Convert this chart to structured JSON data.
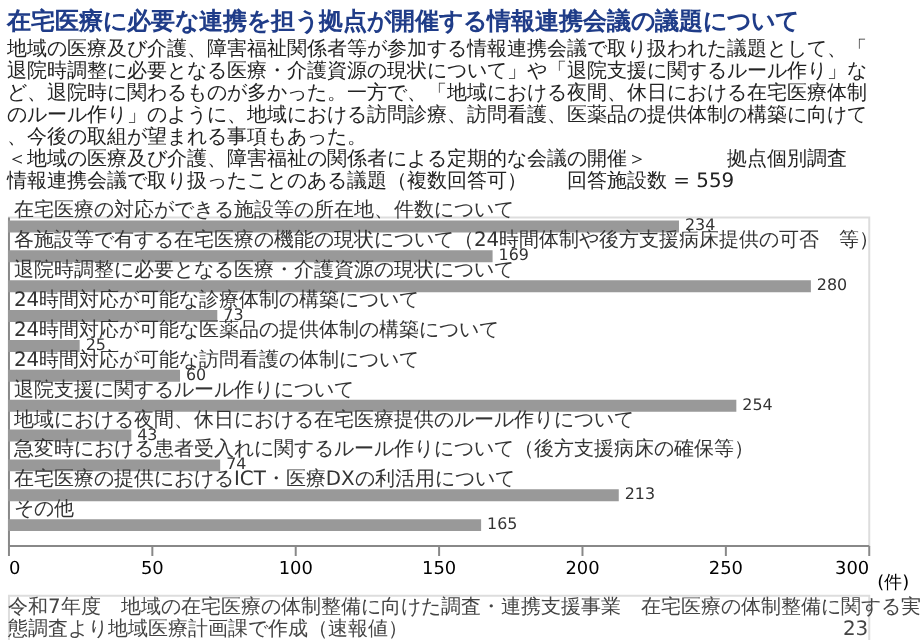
{
  "chart_data": {
    "type": "bar",
    "orientation": "horizontal",
    "title": "在宅医療に必要な連携を担う拠点が開催する情報連携会議の議題について",
    "subtitle": "＜地域の医療及び介護、障害福祉の関係者による定期的な会議の開催＞",
    "annotations": [
      "地域の医療及び介護、障害福祉関係者等が参加する情報連携会議で取り扱われた議題として、「退院時調整に必要となる医療・介護資源の現状について」や「退院支援に関するルール作り」など、退院時に関わるものが多かった。一方で、「地域における夜間、休日における在宅医療体制のルール作り」のように、地域における訪問診療、訪問看護、医薬品の提供体制の構築に向けて、今後の取組が望まれる事項もあった。",
      "情報連携会議で取り扱ったことのある議題（複数回答可）",
      "回答施設数 = 559",
      "令和7年度　地域の在宅医療の体制整備に向けた調査・連携支援事業　在宅医療の体制整備に関する実態調査より地域医療計画課で作成（速報値）",
      "拠点個別調査",
      "23"
    ],
    "categories": [
      "在宅医療の対応ができる施設等の所在地、件数について",
      "各施設等で有する在宅医療の機能の現状について（24時間体制や後方支援病床提供の可否　等）",
      "退院時調整に必要となる医療・介護資源の現状について",
      "24時間対応が可能な診療体制の構築について",
      "24時間対応が可能な医薬品の提供体制の構築について",
      "24時間対応が可能な訪問看護の体制について",
      "退院支援に関するルール作りについて",
      "地域における夜間、休日における在宅医療提供のルール作りについて",
      "急変時における患者受入れに関するルール作りについて（後方支援病床の確保等）",
      "在宅医療の提供におけるICT・医療DXの利活用について",
      "その他"
    ],
    "values": [
      234,
      169,
      280,
      73,
      25,
      60,
      254,
      43,
      74,
      213,
      165
    ],
    "color": "#999999",
    "xlim": [
      0,
      300
    ],
    "xticks": [
      0,
      50,
      100,
      150,
      200,
      250,
      300
    ],
    "xlabel": "(件)",
    "data_labels": true,
    "grid": false
  }
}
